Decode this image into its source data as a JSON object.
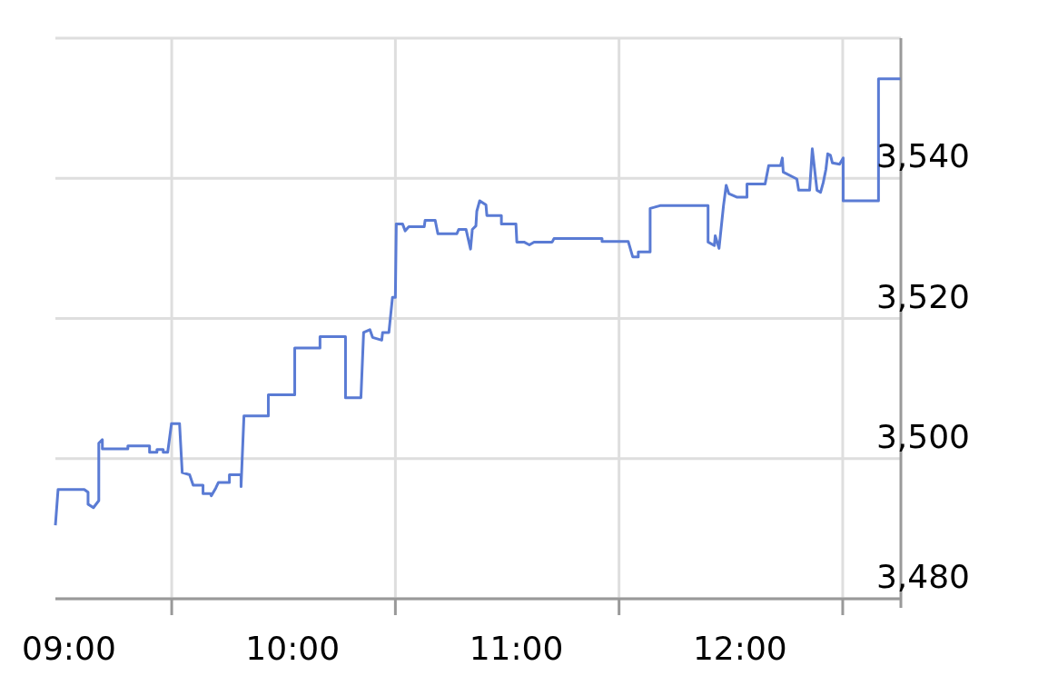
{
  "chart_data": {
    "type": "line",
    "color": "#5a7bd4",
    "grid": true,
    "line_style": "solid",
    "xlim": [
      8.98,
      12.76
    ],
    "ylim": [
      3480,
      3560
    ],
    "xticks": [
      {
        "value": 9,
        "label": "09:00"
      },
      {
        "value": 9.5,
        "label": null
      },
      {
        "value": 10,
        "label": "10:00"
      },
      {
        "value": 10.5,
        "label": null
      },
      {
        "value": 11,
        "label": "11:00"
      },
      {
        "value": 11.5,
        "label": null
      },
      {
        "value": 12,
        "label": "12:00"
      },
      {
        "value": 12.5,
        "label": null
      }
    ],
    "yticks": [
      {
        "value": 3480,
        "label": "3,480"
      },
      {
        "value": 3500,
        "label": "3,500"
      },
      {
        "value": 3520,
        "label": "3,520"
      },
      {
        "value": 3540,
        "label": "3,540"
      },
      {
        "value": 3560,
        "label": null
      }
    ],
    "x": [
      8.98,
      8.992,
      9.109,
      9.126,
      9.126,
      9.15,
      9.174,
      9.174,
      9.19,
      9.19,
      9.304,
      9.304,
      9.401,
      9.401,
      9.434,
      9.434,
      9.462,
      9.462,
      9.482,
      9.499,
      9.535,
      9.547,
      9.58,
      9.596,
      9.64,
      9.64,
      9.673,
      9.677,
      9.697,
      9.709,
      9.758,
      9.758,
      9.81,
      9.81,
      9.823,
      9.932,
      9.932,
      10.05,
      10.05,
      10.163,
      10.163,
      10.277,
      10.277,
      10.346,
      10.358,
      10.386,
      10.398,
      10.439,
      10.443,
      10.471,
      10.487,
      10.5,
      10.504,
      10.532,
      10.544,
      10.56,
      10.629,
      10.633,
      10.678,
      10.69,
      10.775,
      10.783,
      10.816,
      10.836,
      10.844,
      10.86,
      10.864,
      10.877,
      10.905,
      10.909,
      10.974,
      10.974,
      11.039,
      11.043,
      11.075,
      11.099,
      11.12,
      11.201,
      11.209,
      11.424,
      11.424,
      11.541,
      11.561,
      11.586,
      11.586,
      11.639,
      11.639,
      11.683,
      11.898,
      11.898,
      11.926,
      11.93,
      11.947,
      11.967,
      11.979,
      11.991,
      12.028,
      12.072,
      12.072,
      12.153,
      12.169,
      12.222,
      12.23,
      12.234,
      12.295,
      12.303,
      12.352,
      12.364,
      12.385,
      12.401,
      12.413,
      12.425,
      12.433,
      12.445,
      12.454,
      12.486,
      12.502,
      12.502,
      12.66,
      12.66,
      12.758
    ],
    "values": [
      3490.5,
      3495.6,
      3495.6,
      3495.2,
      3493.5,
      3493,
      3494,
      3502.2,
      3502.7,
      3501.4,
      3501.4,
      3501.8,
      3501.8,
      3500.9,
      3500.9,
      3501.3,
      3501.3,
      3500.9,
      3500.9,
      3505,
      3505,
      3498,
      3497.7,
      3496.2,
      3496.2,
      3495,
      3495,
      3494.7,
      3495.8,
      3496.6,
      3496.6,
      3497.7,
      3497.7,
      3496,
      3506.1,
      3506.1,
      3509.1,
      3509.1,
      3515.8,
      3515.8,
      3517.4,
      3517.4,
      3508.7,
      3508.7,
      3518,
      3518.4,
      3517.3,
      3516.9,
      3518,
      3518,
      3523,
      3523,
      3533.5,
      3533.5,
      3532.5,
      3533.1,
      3533.1,
      3534,
      3534,
      3532.1,
      3532.1,
      3532.7,
      3532.7,
      3529.9,
      3532.7,
      3533.2,
      3535.3,
      3536.8,
      3536.2,
      3534.7,
      3534.7,
      3533.5,
      3533.5,
      3530.9,
      3530.9,
      3530.5,
      3530.9,
      3530.9,
      3531.4,
      3531.4,
      3531,
      3531,
      3528.8,
      3528.8,
      3529.5,
      3529.5,
      3535.7,
      3536.1,
      3536.1,
      3530.9,
      3530.4,
      3531.8,
      3530,
      3536.1,
      3539,
      3537.8,
      3537.3,
      3537.3,
      3539.2,
      3539.2,
      3541.8,
      3541.8,
      3542.9,
      3540.9,
      3539.9,
      3538.3,
      3538.3,
      3544.2,
      3538.3,
      3538,
      3539.4,
      3541.3,
      3543.5,
      3543.3,
      3542.2,
      3542,
      3542.9,
      3536.8,
      3536.8,
      3554.2,
      3554.2
    ]
  }
}
